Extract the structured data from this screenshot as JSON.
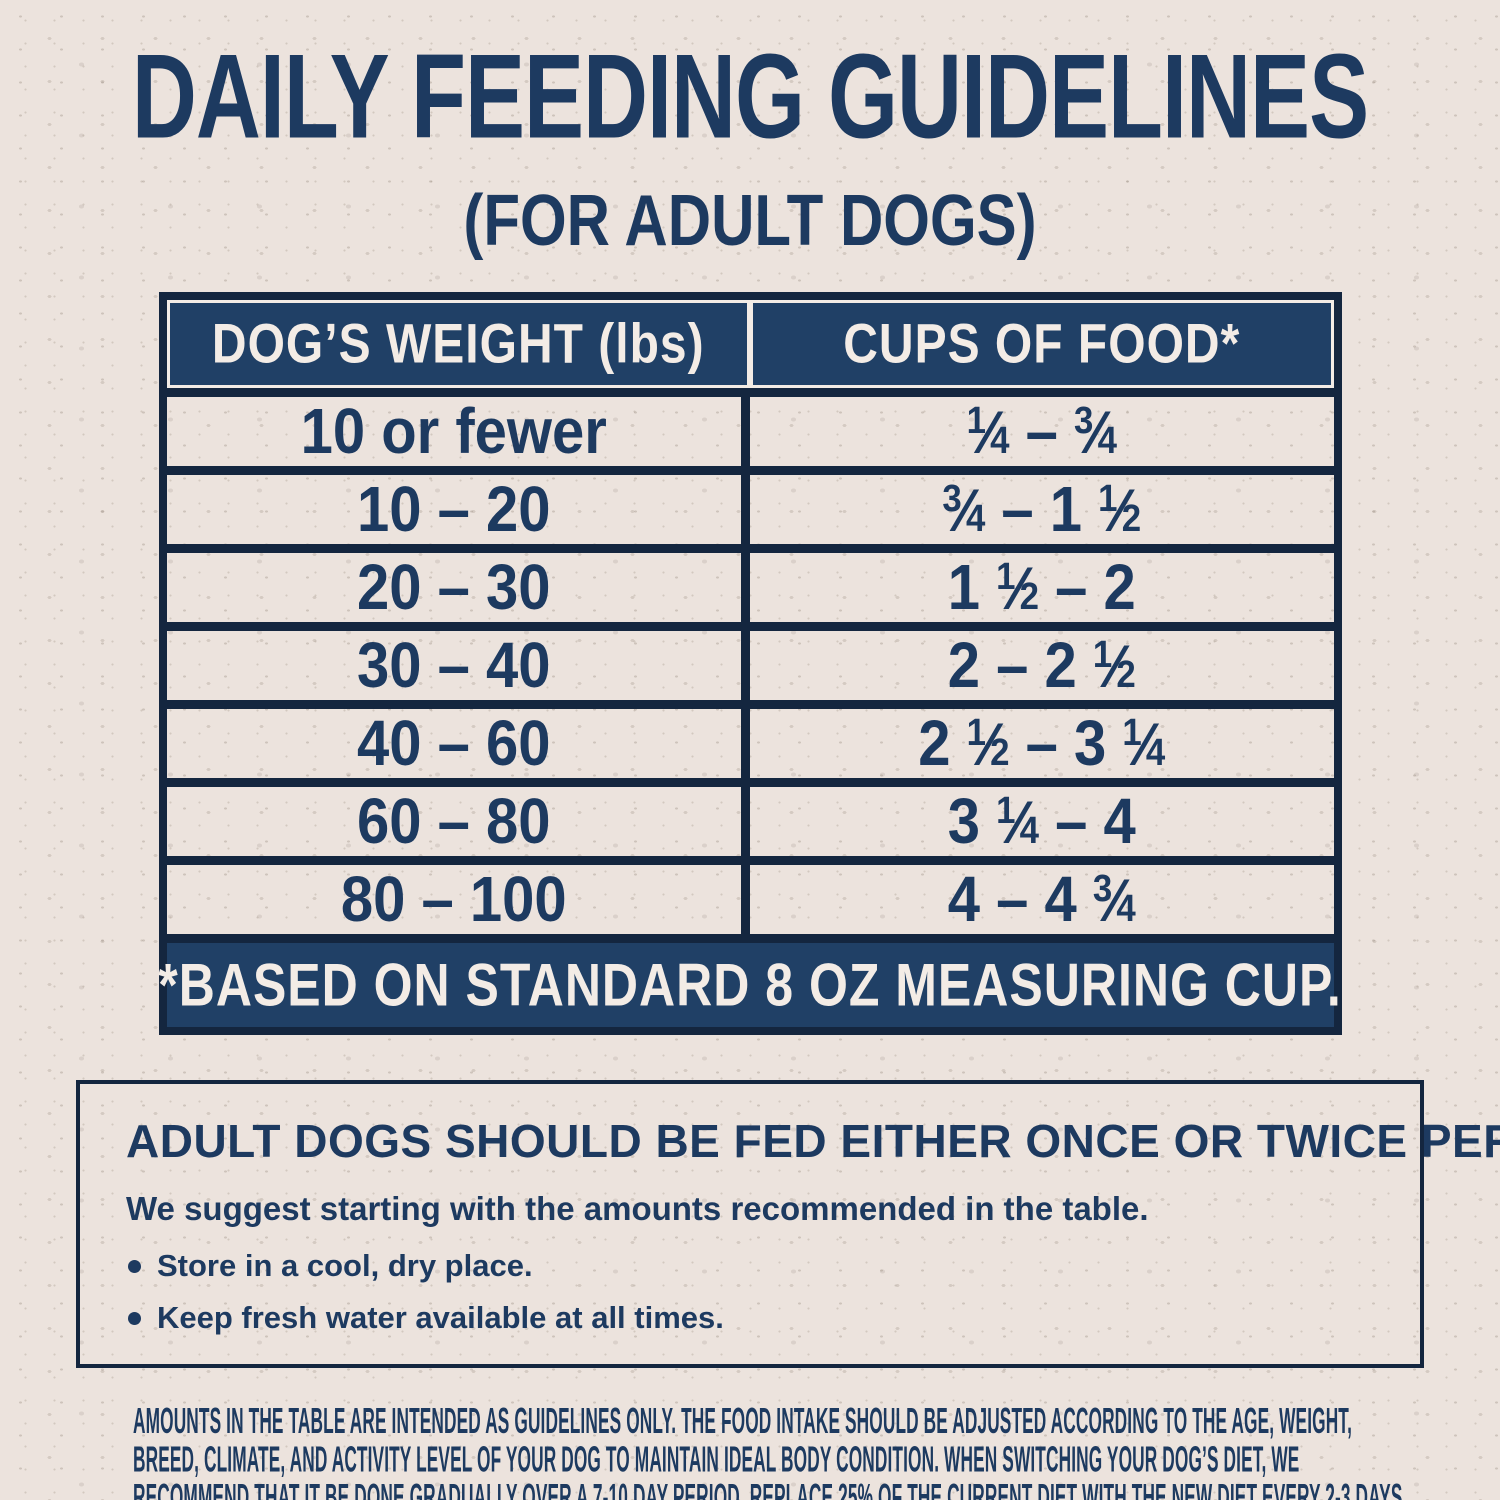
{
  "title": "DAILY FEEDING GUIDELINES",
  "subtitle": "(FOR ADULT DOGS)",
  "table": {
    "headers": [
      "DOG’S WEIGHT (lbs)",
      "CUPS OF FOOD*"
    ],
    "rows": [
      {
        "weight": "10 or fewer",
        "cups": "{1/4} – {3/4}"
      },
      {
        "weight": "10 – 20",
        "cups": "{3/4} – 1 {1/2}"
      },
      {
        "weight": "20 – 30",
        "cups": "1 {1/2} – 2"
      },
      {
        "weight": "30 – 40",
        "cups": "2 – 2 {1/2}"
      },
      {
        "weight": "40 – 60",
        "cups": "2 {1/2} – 3 {1/4}"
      },
      {
        "weight": "60 – 80",
        "cups": "3 {1/4} – 4"
      },
      {
        "weight": "80 – 100",
        "cups": "4 – 4 {3/4}"
      }
    ],
    "footnote": "*BASED ON STANDARD 8 OZ MEASURING CUP."
  },
  "info_box": {
    "heading": "ADULT DOGS SHOULD BE FED EITHER ONCE OR TWICE PER DAY.",
    "subheading": "We suggest starting with the amounts recommended in the table.",
    "bullets": [
      "Store in a cool, dry place.",
      "Keep fresh water available at all times."
    ]
  },
  "fine_print": "AMOUNTS IN THE TABLE ARE INTENDED AS GUIDELINES ONLY. THE FOOD INTAKE SHOULD BE ADJUSTED ACCORDING TO THE AGE, WEIGHT, BREED, CLIMATE, AND ACTIVITY LEVEL OF YOUR DOG TO MAINTAIN IDEAL BODY CONDITION. WHEN SWITCHING YOUR DOG’S DIET, WE RECOMMEND THAT IT BE DONE GRADUALLY OVER A 7-10 DAY PERIOD. REPLACE 25% OF THE CURRENT DIET WITH THE NEW DIET EVERY 2-3 DAYS UNTIL THEY ARE FULLY TRANSITIONED.",
  "colors": {
    "navy": "#204066",
    "navy_line": "#14263f",
    "cream": "#ece3dd",
    "text_light": "#f3ece6",
    "ink": "#1d3a60"
  }
}
